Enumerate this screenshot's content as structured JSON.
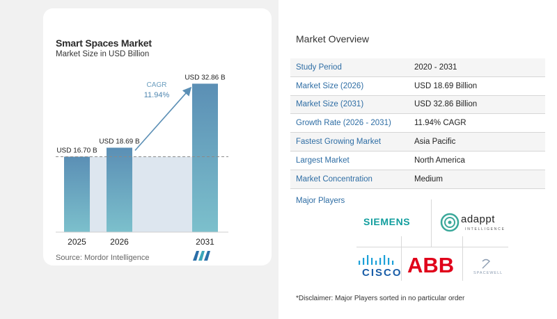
{
  "chart_data": {
    "type": "bar",
    "title": "Smart Spaces Market",
    "subtitle": "Market Size in USD Billion",
    "categories": [
      "2025",
      "2026",
      "2031"
    ],
    "values": [
      16.7,
      18.69,
      32.86
    ],
    "value_labels": [
      "USD 16.70 B",
      "USD 18.69 B",
      "USD 32.86 B"
    ],
    "ylim": [
      0,
      36
    ],
    "cagr_label": "CAGR",
    "cagr_value": "11.94%",
    "colors": {
      "bar_top": "#5b8fb5",
      "bar_bottom": "#7cc0cc",
      "shade": "#dde6ef",
      "arrow": "#5b8fb5"
    }
  },
  "source": "Source:  Mordor Intelligence",
  "overview": {
    "title": "Market Overview",
    "rows": [
      {
        "label": "Study Period",
        "value": "2020 - 2031"
      },
      {
        "label": "Market Size (2026)",
        "value": "USD 18.69 Billion"
      },
      {
        "label": "Market Size (2031)",
        "value": "USD 32.86 Billion"
      },
      {
        "label": "Growth Rate (2026 - 2031)",
        "value": "11.94% CAGR"
      },
      {
        "label": "Fastest Growing Market",
        "value": "Asia Pacific"
      },
      {
        "label": "Largest Market",
        "value": "North America"
      },
      {
        "label": "Market Concentration",
        "value": "Medium"
      }
    ]
  },
  "players": {
    "title": "Major Players",
    "siemens": "SIEMENS",
    "adappt": "adappt",
    "adappt_sub": "INTELLIGENCE",
    "cisco": "CISCO",
    "abb": "ABB",
    "spacewell": "SPACEWELL"
  },
  "disclaimer": "*Disclaimer: Major Players sorted in no particular order"
}
